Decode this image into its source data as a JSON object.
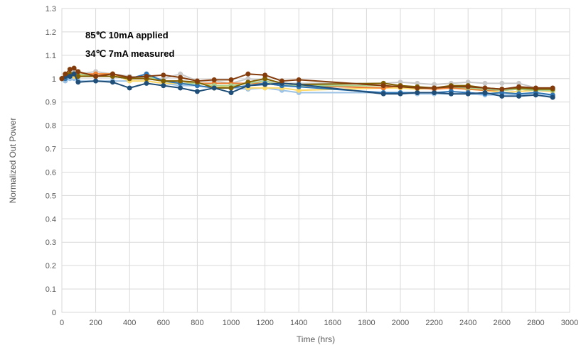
{
  "chart_data": {
    "type": "line",
    "title": "",
    "xlabel": "Time (hrs)",
    "ylabel": "Normalized Out Power",
    "xlim": [
      0,
      3000
    ],
    "ylim": [
      0,
      1.3
    ],
    "x_ticks": [
      0,
      200,
      400,
      600,
      800,
      1000,
      1200,
      1400,
      1600,
      1800,
      2000,
      2200,
      2400,
      2600,
      2800,
      3000
    ],
    "x_tick_labels": [
      "0",
      "200",
      "400",
      "600",
      "800",
      "1000",
      "1200",
      "1400",
      "1600",
      "1800",
      "2000",
      "2200",
      "2400",
      "2600",
      "2800",
      "3000"
    ],
    "y_ticks": [
      0,
      0.1,
      0.2,
      0.3,
      0.4,
      0.5,
      0.6,
      0.7,
      0.8,
      0.9,
      1.0,
      1.1,
      1.2,
      1.3
    ],
    "y_tick_labels": [
      "0",
      "0.1",
      "0.2",
      "0.3",
      "0.4",
      "0.5",
      "0.6",
      "0.7",
      "0.8",
      "0.9",
      "1",
      "1.1",
      "1.2",
      "1.3"
    ],
    "grid": true,
    "legend": "none",
    "annotations": [
      "85℃ 10mA applied",
      "34℃ 7mA measured"
    ],
    "series": [
      {
        "color": "#c9c9c9",
        "x": [
          0,
          20,
          48,
          72,
          96,
          200,
          300,
          400,
          500,
          600,
          700,
          800,
          900,
          1000,
          1100,
          1200,
          1300,
          1400,
          1900,
          2000,
          2100,
          2200,
          2300,
          2400,
          2500,
          2600,
          2700,
          2800,
          2900
        ],
        "y": [
          1.0,
          1.01,
          1.02,
          1.03,
          1.02,
          1.03,
          1.02,
          1.01,
          1.0,
          1.0,
          1.02,
          0.99,
          0.99,
          0.98,
          1.0,
          0.99,
          0.98,
          0.98,
          0.98,
          0.985,
          0.98,
          0.975,
          0.98,
          0.985,
          0.98,
          0.98,
          0.98,
          0.96,
          0.96
        ]
      },
      {
        "color": "#9dc3e6",
        "x": [
          0,
          20,
          48,
          72,
          96,
          200,
          300,
          400,
          500,
          600,
          700,
          800,
          900,
          1000,
          1100,
          1200,
          1300,
          1400,
          1900,
          2000,
          2100,
          2200,
          2300,
          2400,
          2500,
          2600,
          2700,
          2800,
          2900
        ],
        "y": [
          1.0,
          0.99,
          1.0,
          1.0,
          0.99,
          0.99,
          0.99,
          0.99,
          0.99,
          0.98,
          0.97,
          0.97,
          0.96,
          0.96,
          0.955,
          0.96,
          0.95,
          0.94,
          0.94,
          0.94,
          0.935,
          0.935,
          0.935,
          0.935,
          0.93,
          0.93,
          0.93,
          0.93,
          0.925
        ]
      },
      {
        "color": "#ffd966",
        "x": [
          0,
          20,
          48,
          72,
          96,
          200,
          300,
          400,
          500,
          600,
          700,
          800,
          900,
          1000,
          1100,
          1200,
          1300,
          1400,
          1900,
          2000,
          2100,
          2200,
          2300,
          2400,
          2500,
          2600,
          2700,
          2800,
          2900
        ],
        "y": [
          1.0,
          1.01,
          1.02,
          1.01,
          1.01,
          1.02,
          1.02,
          0.99,
          0.99,
          0.98,
          0.98,
          0.97,
          0.96,
          0.97,
          0.96,
          0.96,
          0.96,
          0.95,
          0.96,
          0.96,
          0.955,
          0.96,
          0.96,
          0.955,
          0.95,
          0.94,
          0.945,
          0.95,
          0.945
        ]
      },
      {
        "color": "#ed7d31",
        "x": [
          0,
          20,
          48,
          72,
          96,
          200,
          300,
          400,
          500,
          600,
          700,
          800,
          900,
          1000,
          1100,
          1200,
          1300,
          1400,
          1900,
          2000,
          2100,
          2200,
          2300,
          2400,
          2500,
          2600,
          2700,
          2800,
          2900
        ],
        "y": [
          1.0,
          1.01,
          1.02,
          1.02,
          1.02,
          1.02,
          1.02,
          1.0,
          1.0,
          0.99,
          0.99,
          0.98,
          0.98,
          0.98,
          0.98,
          0.98,
          0.97,
          0.97,
          0.96,
          0.97,
          0.96,
          0.955,
          0.96,
          0.955,
          0.95,
          0.95,
          0.955,
          0.95,
          0.95
        ]
      },
      {
        "color": "#a9d18e",
        "x": [
          0,
          20,
          48,
          72,
          96,
          200,
          300,
          400,
          500,
          600,
          700,
          800,
          900,
          1000,
          1100,
          1200,
          1300,
          1400,
          1900,
          2000,
          2100,
          2200,
          2300,
          2400,
          2500,
          2600,
          2700,
          2800,
          2900
        ],
        "y": [
          1.0,
          1.0,
          1.01,
          1.02,
          1.02,
          1.01,
          1.01,
          1.0,
          1.01,
          0.99,
          0.98,
          0.98,
          0.97,
          0.97,
          0.98,
          0.99,
          0.97,
          0.97,
          0.97,
          0.965,
          0.96,
          0.96,
          0.965,
          0.96,
          0.955,
          0.95,
          0.955,
          0.95,
          0.95
        ]
      },
      {
        "color": "#2e75b6",
        "x": [
          0,
          20,
          48,
          72,
          96,
          200,
          300,
          400,
          500,
          600,
          700,
          800,
          900,
          1000,
          1100,
          1200,
          1300,
          1400,
          1900,
          2000,
          2100,
          2200,
          2300,
          2400,
          2500,
          2600,
          2700,
          2800,
          2900
        ],
        "y": [
          1.0,
          1.0,
          1.01,
          1.02,
          1.01,
          1.01,
          1.01,
          1.0,
          1.02,
          0.99,
          0.98,
          0.97,
          0.96,
          0.96,
          0.97,
          0.98,
          0.97,
          0.965,
          0.94,
          0.94,
          0.94,
          0.94,
          0.945,
          0.94,
          0.935,
          0.94,
          0.935,
          0.94,
          0.93
        ]
      },
      {
        "color": "#806000",
        "x": [
          0,
          20,
          48,
          72,
          96,
          200,
          300,
          400,
          500,
          600,
          700,
          800,
          900,
          1000,
          1100,
          1200,
          1300,
          1400,
          1900,
          2000,
          2100,
          2200,
          2300,
          2400,
          2500,
          2600,
          2700,
          2800,
          2900
        ],
        "y": [
          1.0,
          1.01,
          1.02,
          1.02,
          1.01,
          1.01,
          1.01,
          1.0,
          1.0,
          0.99,
          0.99,
          0.985,
          0.96,
          0.96,
          0.985,
          1.0,
          0.98,
          0.975,
          0.98,
          0.97,
          0.965,
          0.96,
          0.97,
          0.97,
          0.96,
          0.955,
          0.96,
          0.955,
          0.955
        ]
      },
      {
        "color": "#1f4e79",
        "x": [
          0,
          20,
          48,
          72,
          96,
          200,
          300,
          400,
          500,
          600,
          700,
          800,
          900,
          1000,
          1100,
          1200,
          1300,
          1400,
          1900,
          2000,
          2100,
          2200,
          2300,
          2400,
          2500,
          2600,
          2700,
          2800,
          2900
        ],
        "y": [
          1.0,
          1.01,
          1.01,
          1.02,
          0.985,
          0.99,
          0.985,
          0.96,
          0.98,
          0.97,
          0.96,
          0.945,
          0.96,
          0.94,
          0.97,
          0.975,
          0.98,
          0.975,
          0.935,
          0.935,
          0.94,
          0.94,
          0.935,
          0.935,
          0.94,
          0.925,
          0.925,
          0.93,
          0.92
        ]
      },
      {
        "color": "#843c0c",
        "x": [
          0,
          20,
          48,
          72,
          96,
          200,
          300,
          400,
          500,
          600,
          700,
          800,
          900,
          1000,
          1100,
          1200,
          1300,
          1400,
          1900,
          2000,
          2100,
          2200,
          2300,
          2400,
          2500,
          2600,
          2700,
          2800,
          2900
        ],
        "y": [
          1.0,
          1.02,
          1.04,
          1.045,
          1.03,
          1.01,
          1.02,
          1.005,
          1.01,
          1.015,
          1.005,
          0.99,
          0.995,
          0.995,
          1.02,
          1.015,
          0.99,
          0.995,
          0.97,
          0.965,
          0.96,
          0.96,
          0.965,
          0.965,
          0.96,
          0.955,
          0.965,
          0.96,
          0.96
        ]
      }
    ]
  }
}
